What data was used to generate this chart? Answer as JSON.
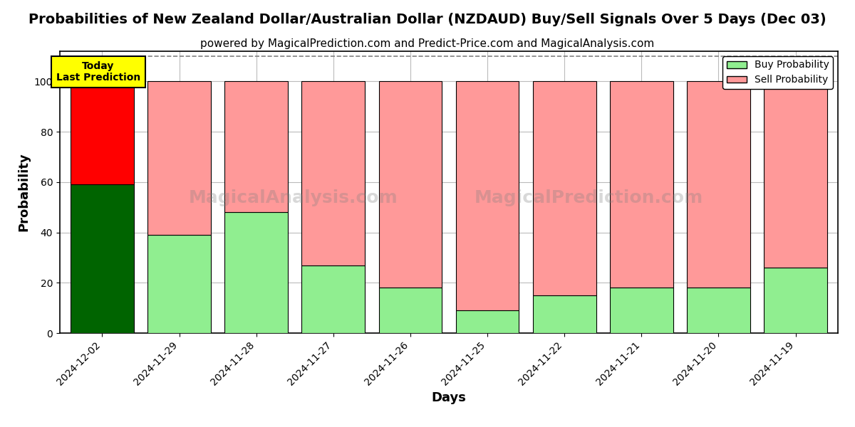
{
  "title": "Probabilities of New Zealand Dollar/Australian Dollar (NZDAUD) Buy/Sell Signals Over 5 Days (Dec 03)",
  "subtitle": "powered by MagicalPrediction.com and Predict-Price.com and MagicalAnalysis.com",
  "xlabel": "Days",
  "ylabel": "Probability",
  "categories": [
    "2024-12-02",
    "2024-11-29",
    "2024-11-28",
    "2024-11-27",
    "2024-11-26",
    "2024-11-25",
    "2024-11-22",
    "2024-11-21",
    "2024-11-20",
    "2024-11-19"
  ],
  "buy_values": [
    59,
    39,
    48,
    27,
    18,
    9,
    15,
    18,
    18,
    26
  ],
  "sell_values": [
    41,
    61,
    52,
    73,
    82,
    91,
    85,
    82,
    82,
    74
  ],
  "buy_colors": [
    "#006400",
    "#90EE90",
    "#90EE90",
    "#90EE90",
    "#90EE90",
    "#90EE90",
    "#90EE90",
    "#90EE90",
    "#90EE90",
    "#90EE90"
  ],
  "sell_colors": [
    "#FF0000",
    "#FF9999",
    "#FF9999",
    "#FF9999",
    "#FF9999",
    "#FF9999",
    "#FF9999",
    "#FF9999",
    "#FF9999",
    "#FF9999"
  ],
  "ylim": [
    0,
    112
  ],
  "yticks": [
    0,
    20,
    40,
    60,
    80,
    100
  ],
  "legend_buy_color": "#90EE90",
  "legend_sell_color": "#FF9999",
  "today_box_color": "#FFFF00",
  "today_text": "Today\nLast Prediction",
  "watermark_text1": "MagicalAnalysis.com",
  "watermark_text2": "MagicalPrediction.com",
  "background_color": "#FFFFFF",
  "grid_color": "#BBBBBB",
  "dashed_line_y": 110,
  "title_fontsize": 14,
  "subtitle_fontsize": 11,
  "axis_label_fontsize": 13,
  "tick_fontsize": 10,
  "bar_width": 0.82
}
